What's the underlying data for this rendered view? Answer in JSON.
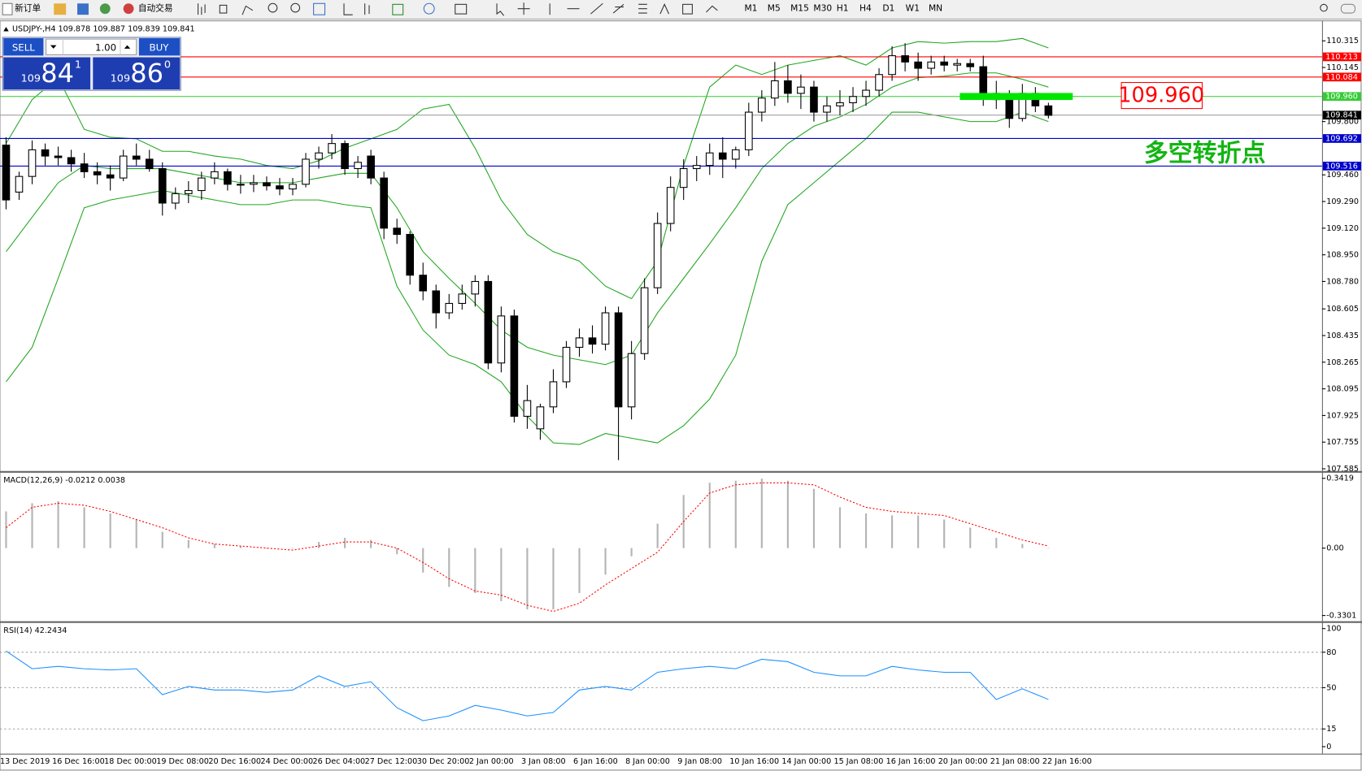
{
  "toolbar": {
    "new_order": "新订单",
    "auto_trading": "自动交易",
    "timeframes": [
      "M1",
      "M5",
      "M15",
      "M30",
      "H1",
      "H4",
      "D1",
      "W1",
      "MN"
    ]
  },
  "trade_panel": {
    "sell": "SELL",
    "lot": "1.00",
    "buy": "BUY",
    "bid": {
      "big": "109",
      "main": "84",
      "sup": "1"
    },
    "ask": {
      "big": "109",
      "main": "86",
      "sup": "0"
    }
  },
  "annotations": [
    {
      "text": "109.960",
      "color": "#ff0000"
    },
    {
      "text": "多空转折点",
      "color": "#12b512"
    }
  ],
  "chart_data": [
    {
      "type": "candlestick",
      "title": "USDJPY-,H4  109.878 109.887 109.839 109.841",
      "categories": [
        "13 Dec 2019",
        null,
        null,
        null,
        "16 Dec 16:00",
        null,
        null,
        null,
        "18 Dec 00:00",
        null,
        null,
        null,
        "19 Dec 08:00",
        null,
        null,
        null,
        "20 Dec 16:00",
        null,
        null,
        null,
        "24 Dec 00:00",
        null,
        null,
        null,
        "26 Dec 04:00",
        null,
        null,
        null,
        "27 Dec 12:00",
        null,
        null,
        null,
        "30 Dec 20:00",
        null,
        null,
        null,
        "2 Jan 00:00",
        null,
        null,
        null,
        "3 Jan 08:00",
        null,
        null,
        null,
        "6 Jan 16:00",
        null,
        null,
        null,
        "8 Jan 00:00",
        null,
        null,
        null,
        "9 Jan 08:00",
        null,
        null,
        null,
        "10 Jan 16:00",
        null,
        null,
        null,
        "14 Jan 00:00",
        null,
        null,
        null,
        "15 Jan 08:00",
        null,
        null,
        null,
        "16 Jan 16:00",
        null,
        null,
        null,
        "20 Jan 00:00",
        null,
        null,
        null,
        "21 Jan 08:00",
        null,
        null,
        null,
        "22 Jan 16:00"
      ],
      "open": [
        109.65,
        109.35,
        109.45,
        109.62,
        109.58,
        109.57,
        109.53,
        109.48,
        109.46,
        109.44,
        109.58,
        109.56,
        109.5,
        109.28,
        109.34,
        109.36,
        109.44,
        109.48,
        109.4,
        109.4,
        109.41,
        109.39,
        109.37,
        109.4,
        109.56,
        109.6,
        109.66,
        109.5,
        109.58,
        109.44,
        109.12,
        109.08,
        108.82,
        108.72,
        108.58,
        108.64,
        108.7,
        108.78,
        108.26,
        108.56,
        107.92,
        107.84,
        107.98,
        108.14,
        108.36,
        108.42,
        108.38,
        108.58,
        107.98,
        108.32,
        108.74,
        109.15,
        109.38,
        109.5,
        109.52,
        109.6,
        109.56,
        109.62,
        109.86,
        109.95,
        110.06,
        109.98,
        110.02,
        109.86,
        109.9,
        109.92,
        109.96,
        110.0,
        110.1,
        110.22,
        110.18,
        110.14,
        110.18,
        110.16,
        110.17,
        110.15,
        109.98,
        109.94,
        109.82,
        109.98,
        109.9
      ],
      "high": [
        109.7,
        109.48,
        109.68,
        109.66,
        109.64,
        109.62,
        109.6,
        109.54,
        109.52,
        109.62,
        109.66,
        109.62,
        109.54,
        109.38,
        109.42,
        109.48,
        109.54,
        109.5,
        109.46,
        109.46,
        109.45,
        109.44,
        109.44,
        109.6,
        109.64,
        109.72,
        109.68,
        109.58,
        109.62,
        109.48,
        109.18,
        109.1,
        108.9,
        108.76,
        108.7,
        108.76,
        108.82,
        108.82,
        108.62,
        108.6,
        108.12,
        108.0,
        108.22,
        108.4,
        108.48,
        108.5,
        108.62,
        108.62,
        108.4,
        108.8,
        109.22,
        109.45,
        109.56,
        109.58,
        109.66,
        109.7,
        109.64,
        109.92,
        110.0,
        110.18,
        110.16,
        110.1,
        110.06,
        109.96,
        110.0,
        110.02,
        110.06,
        110.14,
        110.28,
        110.3,
        110.24,
        110.22,
        110.22,
        110.2,
        110.2,
        110.22,
        110.06,
        110.0,
        110.04,
        110.02,
        109.92
      ],
      "low": [
        109.24,
        109.3,
        109.4,
        109.52,
        109.52,
        109.48,
        109.44,
        109.4,
        109.36,
        109.42,
        109.52,
        109.48,
        109.2,
        109.24,
        109.28,
        109.3,
        109.4,
        109.36,
        109.34,
        109.35,
        109.36,
        109.33,
        109.33,
        109.38,
        109.5,
        109.56,
        109.46,
        109.44,
        109.4,
        109.05,
        109.02,
        108.76,
        108.66,
        108.48,
        108.54,
        108.6,
        108.62,
        108.22,
        108.2,
        107.88,
        107.84,
        107.77,
        107.94,
        108.1,
        108.3,
        108.32,
        108.34,
        107.64,
        107.9,
        108.28,
        108.7,
        109.1,
        109.3,
        109.42,
        109.46,
        109.44,
        109.5,
        109.58,
        109.8,
        109.9,
        109.92,
        109.88,
        109.8,
        109.8,
        109.84,
        109.86,
        109.9,
        109.96,
        110.06,
        110.12,
        110.06,
        110.1,
        110.12,
        110.12,
        110.12,
        109.9,
        109.88,
        109.76,
        109.8,
        109.86,
        109.82
      ],
      "close": [
        109.3,
        109.45,
        109.62,
        109.58,
        109.57,
        109.53,
        109.48,
        109.46,
        109.44,
        109.58,
        109.56,
        109.5,
        109.28,
        109.34,
        109.36,
        109.44,
        109.48,
        109.4,
        109.4,
        109.41,
        109.39,
        109.37,
        109.4,
        109.56,
        109.6,
        109.66,
        109.5,
        109.54,
        109.44,
        109.12,
        109.08,
        108.82,
        108.72,
        108.58,
        108.64,
        108.7,
        108.78,
        108.26,
        108.56,
        107.92,
        108.02,
        107.98,
        108.14,
        108.36,
        108.42,
        108.38,
        108.58,
        107.98,
        108.32,
        108.74,
        109.15,
        109.38,
        109.5,
        109.52,
        109.6,
        109.56,
        109.62,
        109.86,
        109.95,
        110.06,
        109.98,
        110.02,
        109.86,
        109.9,
        109.92,
        109.96,
        110.0,
        110.1,
        110.22,
        110.18,
        110.14,
        110.18,
        110.16,
        110.17,
        110.15,
        109.98,
        109.94,
        109.82,
        109.98,
        109.9,
        109.84
      ],
      "bands": {
        "color": "#21a621",
        "upper": [
          109.66,
          109.94,
          110.08,
          109.75,
          109.7,
          109.69,
          109.61,
          109.61,
          109.58,
          109.56,
          109.52,
          109.5,
          109.55,
          109.63,
          109.69,
          109.75,
          109.88,
          109.91,
          109.63,
          109.3,
          109.08,
          108.97,
          108.91,
          108.75,
          108.67,
          108.91,
          109.52,
          110.02,
          110.16,
          110.1,
          110.16,
          110.19,
          110.22,
          110.16,
          110.27,
          110.31,
          110.3,
          110.31,
          110.31,
          110.33,
          110.27
        ],
        "middle": [
          108.97,
          109.19,
          109.41,
          109.52,
          109.5,
          109.5,
          109.5,
          109.47,
          109.44,
          109.41,
          109.41,
          109.41,
          109.44,
          109.47,
          109.47,
          109.25,
          108.97,
          108.8,
          108.64,
          108.47,
          108.36,
          108.31,
          108.28,
          108.25,
          108.31,
          108.58,
          108.8,
          109.02,
          109.25,
          109.5,
          109.66,
          109.77,
          109.83,
          109.91,
          110.02,
          110.08,
          110.09,
          110.11,
          110.11,
          110.07,
          110.02
        ],
        "lower": [
          108.14,
          108.36,
          108.8,
          109.25,
          109.3,
          109.33,
          109.36,
          109.33,
          109.3,
          109.27,
          109.27,
          109.3,
          109.3,
          109.27,
          109.25,
          108.75,
          108.47,
          108.31,
          108.25,
          108.14,
          107.92,
          107.75,
          107.74,
          107.81,
          107.78,
          107.75,
          107.86,
          108.03,
          108.31,
          108.91,
          109.27,
          109.41,
          109.55,
          109.69,
          109.86,
          109.86,
          109.83,
          109.8,
          109.8,
          109.86,
          109.8
        ]
      },
      "hlines": [
        {
          "value": 110.213,
          "color": "#ff0000"
        },
        {
          "value": 110.084,
          "color": "#ff0000"
        },
        {
          "value": 109.96,
          "label": "109.960",
          "color": "#33cc33"
        },
        {
          "value": 109.841,
          "color": "#a0a0a0"
        },
        {
          "value": 109.692,
          "color": "#0000cc"
        },
        {
          "value": 109.516,
          "color": "#0000cc"
        }
      ],
      "ylim": [
        107.568,
        110.437
      ],
      "yticks": [
        110.315,
        110.145,
        {
          "value": 109.8,
          "label": "109.800"
        },
        {
          "value": 109.46,
          "label": "109.460"
        },
        {
          "value": 109.29,
          "label": "109.290"
        },
        {
          "value": 109.12,
          "label": "109.120"
        },
        {
          "value": 108.95,
          "label": "108.950"
        },
        {
          "value": 108.78,
          "label": "108.780"
        },
        108.605,
        108.435,
        108.265,
        108.095,
        107.925,
        107.755,
        107.585
      ]
    },
    {
      "type": "macd",
      "title": "MACD(12,26,9) -0.0212 0.0038",
      "histogram": {
        "color": "#b4b4b4",
        "values": [
          0.18,
          0.22,
          0.23,
          0.2,
          0.17,
          0.14,
          0.08,
          0.04,
          0.02,
          0.01,
          0.0,
          0.0,
          0.03,
          0.05,
          0.04,
          -0.03,
          -0.12,
          -0.19,
          -0.22,
          -0.26,
          -0.3,
          -0.3,
          -0.22,
          -0.13,
          -0.04,
          0.12,
          0.26,
          0.32,
          0.33,
          0.34,
          0.33,
          0.29,
          0.2,
          0.17,
          0.16,
          0.16,
          0.14,
          0.1,
          0.05,
          0.02,
          0.0
        ]
      },
      "signal": {
        "color": "#ff0000",
        "values": [
          0.1,
          0.2,
          0.22,
          0.21,
          0.18,
          0.14,
          0.1,
          0.05,
          0.02,
          0.01,
          0.0,
          -0.01,
          0.01,
          0.03,
          0.03,
          0.0,
          -0.07,
          -0.15,
          -0.21,
          -0.23,
          -0.28,
          -0.31,
          -0.27,
          -0.18,
          -0.1,
          -0.02,
          0.13,
          0.27,
          0.31,
          0.32,
          0.32,
          0.31,
          0.25,
          0.2,
          0.18,
          0.17,
          0.16,
          0.12,
          0.08,
          0.04,
          0.01
        ]
      },
      "ylim": [
        -0.356,
        0.367
      ],
      "yticks": [
        0.3419,
        {
          "value": 0,
          "label": "0.00"
        },
        -0.3301
      ]
    },
    {
      "type": "line",
      "title": "RSI(14) 42.2434",
      "color": "#1e90ff",
      "values": [
        81,
        66,
        68,
        66,
        65,
        66,
        44,
        51,
        48,
        48,
        46,
        48,
        60,
        51,
        55,
        33,
        22,
        26,
        35,
        31,
        26,
        29,
        48,
        51,
        48,
        63,
        66,
        68,
        66,
        74,
        72,
        63,
        60,
        60,
        68,
        65,
        63,
        63,
        40,
        49,
        40
      ],
      "ylim": [
        -5.9,
        104.4
      ],
      "yticks": [
        100,
        80,
        50,
        15,
        0
      ],
      "levels": [
        80,
        50,
        15
      ]
    }
  ]
}
